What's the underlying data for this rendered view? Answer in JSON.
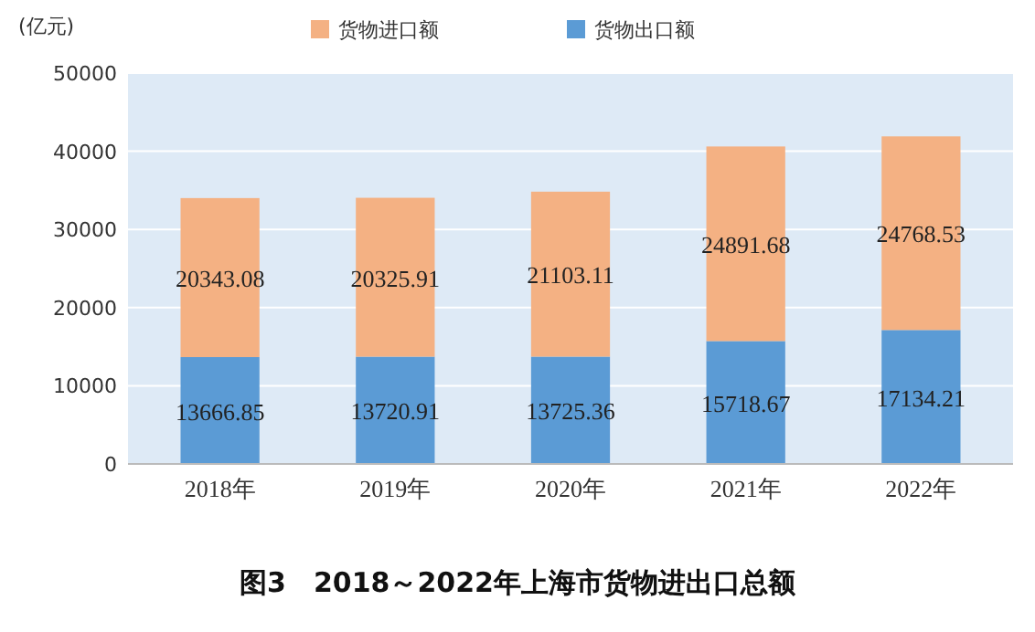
{
  "chart_data": {
    "type": "bar",
    "title": "图3　2018～2022年上海市货物进出口总额",
    "ylabel": "(亿元)",
    "categories": [
      "2018年",
      "2019年",
      "2020年",
      "2021年",
      "2022年"
    ],
    "stacked": true,
    "series": [
      {
        "name": "货物出口额",
        "color": "#5b9bd5",
        "values": [
          13666.85,
          13720.91,
          13725.36,
          15718.67,
          17134.21
        ]
      },
      {
        "name": "货物进口额",
        "color": "#f4b183",
        "values": [
          20343.08,
          20325.91,
          21103.11,
          24891.68,
          24768.53
        ]
      }
    ],
    "ylim": [
      0,
      50000
    ],
    "yticks": [
      0,
      10000,
      20000,
      30000,
      40000,
      50000
    ],
    "grid": "y",
    "legend": "top",
    "data_labels": true
  }
}
